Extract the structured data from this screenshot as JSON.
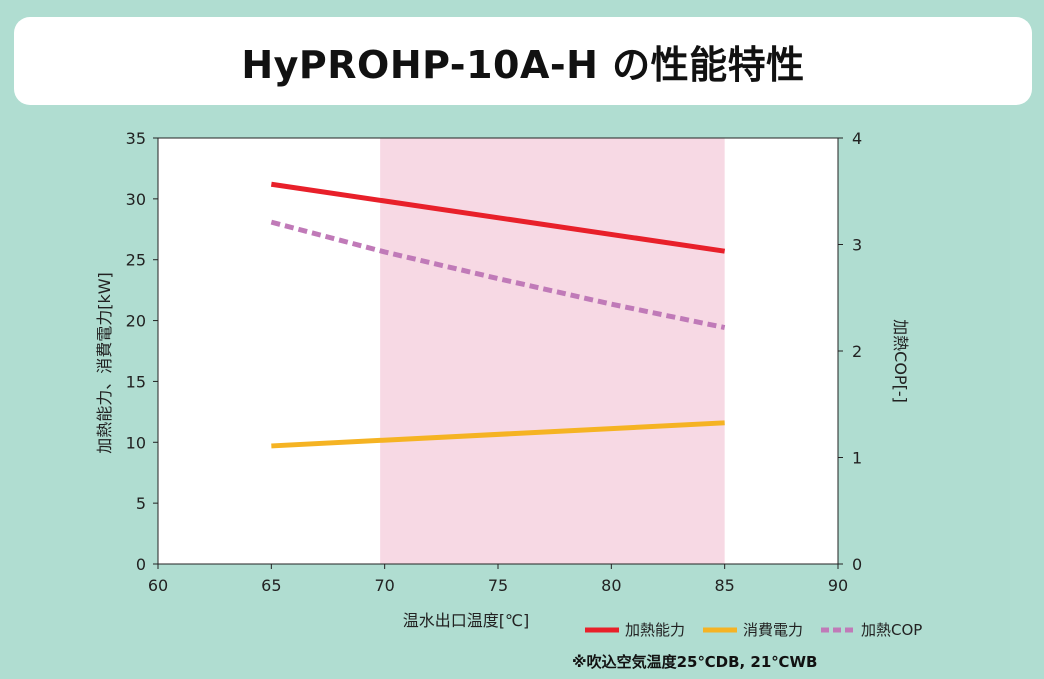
{
  "title": "HyPROHP-10A-H の性能特性",
  "note": "※吹込空気温度25℃DB, 21℃WB",
  "colors": {
    "background": "#b0ddd1",
    "band": "#f7d9e4",
    "heating_capacity": "#e8202a",
    "power_consumption": "#f5b323",
    "cop": "#c07ab8"
  },
  "chart_data": {
    "type": "line",
    "xlabel": "温水出口温度[℃]",
    "ylabel": "加熱能力、消費電力[kW]",
    "y2label": "加熱COP[-]",
    "xlim": [
      60,
      90
    ],
    "ylim": [
      0,
      35
    ],
    "y2lim": [
      0,
      4
    ],
    "xticks": [
      "60",
      "65",
      "70",
      "75",
      "80",
      "85",
      "90"
    ],
    "yticks": [
      "0",
      "5",
      "10",
      "15",
      "20",
      "25",
      "30",
      "35"
    ],
    "y2ticks": [
      "0",
      "1",
      "2",
      "3",
      "4"
    ],
    "grid": false,
    "legend_position": "bottom-right",
    "shaded_band": [
      69.8,
      85
    ],
    "series": [
      {
        "name": "加熱能力",
        "axis": "left",
        "style": "solid",
        "color": "#e8202a",
        "x": [
          65,
          85
        ],
        "y": [
          31.2,
          25.7
        ]
      },
      {
        "name": "消費電力",
        "axis": "left",
        "style": "solid",
        "color": "#f5b323",
        "x": [
          65,
          85
        ],
        "y": [
          9.7,
          11.6
        ]
      },
      {
        "name": "加熱COP",
        "axis": "right",
        "style": "dashed",
        "color": "#c07ab8",
        "x": [
          65,
          70,
          75,
          80,
          85
        ],
        "y": [
          3.21,
          2.93,
          2.68,
          2.44,
          2.22
        ]
      }
    ]
  }
}
